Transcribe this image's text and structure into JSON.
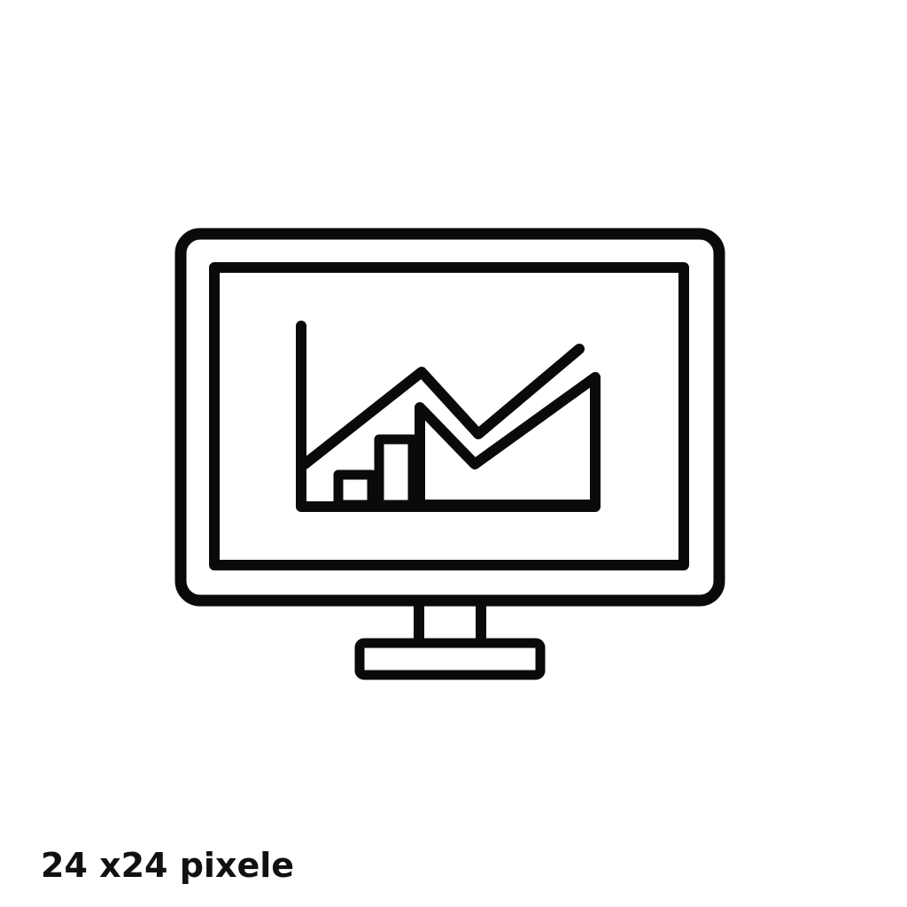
{
  "icon": {
    "name": "monitor-chart-icon",
    "stroke_color": "#0a0a0a",
    "background": "#ffffff"
  },
  "caption": {
    "text": "24 x24 pixele",
    "color": "#111111"
  }
}
